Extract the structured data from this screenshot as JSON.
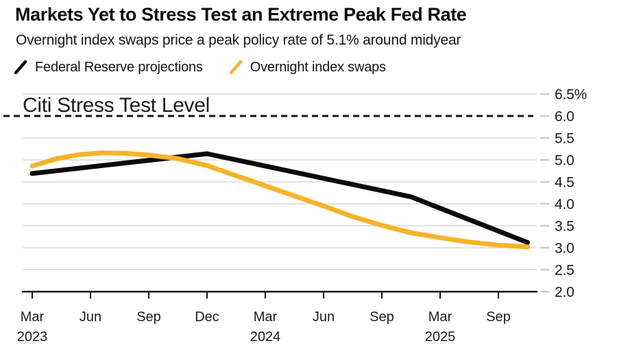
{
  "header": {
    "title": "Markets Yet to Stress Test an Extreme Peak Fed Rate",
    "subtitle": "Overnight index swaps price a peak policy rate of 5.1% around midyear"
  },
  "legend": {
    "items": [
      {
        "label": "Federal Reserve projections",
        "icon": "black-slash-line-swatch",
        "color": "#0b0b0b"
      },
      {
        "label": "Overnight index swaps",
        "icon": "yellow-slash-line-swatch",
        "color": "#f6b32b"
      }
    ]
  },
  "chart_data": {
    "type": "line",
    "title": "Markets Yet to Stress Test an Extreme Peak Fed Rate",
    "subtitle": "Overnight index swaps price a peak policy rate of 5.1% around midyear",
    "legend_position": "top",
    "grid": true,
    "grid_color": "#d9d9d9",
    "tick_dash_color": "#c8c8c8",
    "axis_color": "#141414",
    "y_axis": {
      "unit": "%",
      "min": 2.0,
      "max": 6.5,
      "side": "right",
      "ticks": [
        {
          "label": "6.5%",
          "value": 6.5
        },
        {
          "label": "6.0",
          "value": 6.0
        },
        {
          "label": "5.5",
          "value": 5.5
        },
        {
          "label": "5.0",
          "value": 5.0
        },
        {
          "label": "4.5",
          "value": 4.5
        },
        {
          "label": "4.0",
          "value": 4.0
        },
        {
          "label": "3.5",
          "value": 3.5
        },
        {
          "label": "3.0",
          "value": 3.0
        },
        {
          "label": "2.5",
          "value": 2.5
        },
        {
          "label": "2.0",
          "value": 2.0
        }
      ]
    },
    "x_axis": {
      "ticks": [
        {
          "month": "Mar",
          "year": "2023"
        },
        {
          "month": "Jun",
          "year": ""
        },
        {
          "month": "Sep",
          "year": ""
        },
        {
          "month": "Dec",
          "year": ""
        },
        {
          "month": "Mar",
          "year": "2024"
        },
        {
          "month": "Jun",
          "year": ""
        },
        {
          "month": "Sep",
          "year": ""
        },
        {
          "month": "Mar",
          "year": "2025"
        },
        {
          "month": "Sep",
          "year": ""
        }
      ]
    },
    "ref_line": {
      "label": "Citi Stress Test Level",
      "value": 6.0,
      "style": "dashed",
      "color": "#141414"
    },
    "series": [
      {
        "name": "Federal Reserve projections",
        "color": "#0b0b0b",
        "points": [
          [
            0,
            4.69
          ],
          [
            3,
            5.14
          ],
          [
            6.5,
            4.16
          ],
          [
            8.5,
            3.12
          ]
        ]
      },
      {
        "name": "Overnight index swaps",
        "color": "#f6b32b",
        "points": [
          [
            0,
            4.86
          ],
          [
            0.4,
            5.02
          ],
          [
            0.8,
            5.12
          ],
          [
            1.2,
            5.16
          ],
          [
            1.6,
            5.15
          ],
          [
            2.0,
            5.11
          ],
          [
            2.5,
            5.03
          ],
          [
            3.0,
            4.87
          ],
          [
            3.5,
            4.64
          ],
          [
            4.0,
            4.41
          ],
          [
            4.5,
            4.18
          ],
          [
            5.0,
            3.95
          ],
          [
            5.5,
            3.71
          ],
          [
            6.0,
            3.51
          ],
          [
            6.5,
            3.34
          ],
          [
            7.0,
            3.23
          ],
          [
            7.5,
            3.13
          ],
          [
            8.0,
            3.06
          ],
          [
            8.5,
            3.02
          ]
        ]
      }
    ]
  }
}
